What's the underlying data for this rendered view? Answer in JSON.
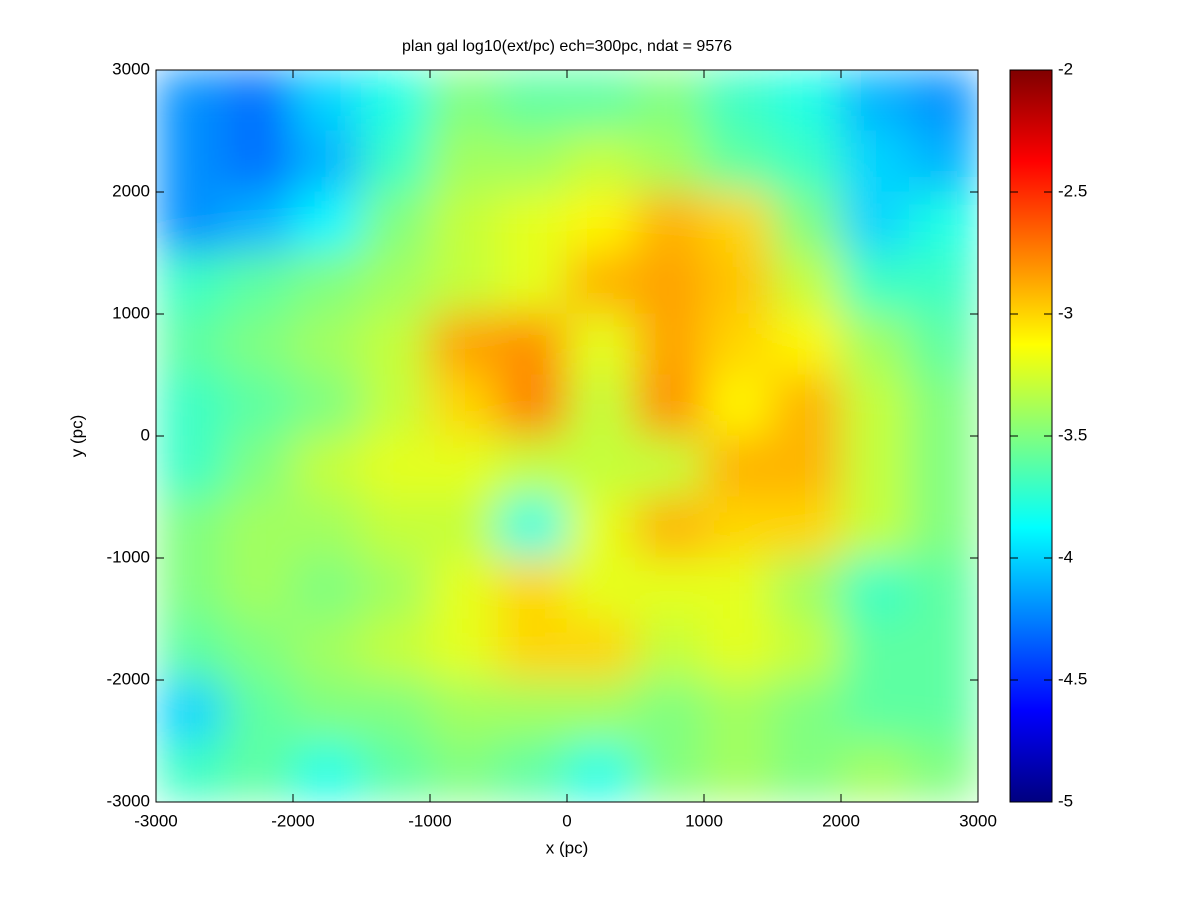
{
  "chart_data": {
    "type": "heatmap",
    "title": "plan gal log10(ext/pc) ech=300pc, ndat = 9576",
    "xlabel": "x (pc)",
    "ylabel": "y (pc)",
    "x": [
      -2750,
      -2250,
      -1750,
      -1250,
      -750,
      -250,
      250,
      750,
      1250,
      1750,
      2250,
      2750
    ],
    "y": [
      2750,
      2250,
      1750,
      1250,
      750,
      250,
      -250,
      -750,
      -1250,
      -1750,
      -2250,
      -2750
    ],
    "z": [
      [
        -4.2,
        -4.3,
        -4.0,
        -3.8,
        -3.5,
        -3.6,
        -3.6,
        -3.5,
        -3.7,
        -3.8,
        -4.1,
        -4.2
      ],
      [
        -4.2,
        -4.3,
        -4.1,
        -3.7,
        -3.4,
        -3.4,
        -3.3,
        -3.4,
        -3.6,
        -3.7,
        -4.0,
        -4.1
      ],
      [
        -4.2,
        -4.1,
        -3.9,
        -3.5,
        -3.3,
        -3.2,
        -3.1,
        -2.9,
        -3.0,
        -3.5,
        -4.0,
        -3.8
      ],
      [
        -3.7,
        -3.6,
        -3.5,
        -3.4,
        -3.3,
        -3.2,
        -2.9,
        -2.85,
        -2.95,
        -3.3,
        -3.7,
        -3.7
      ],
      [
        -3.6,
        -3.5,
        -3.4,
        -3.3,
        -2.85,
        -2.8,
        -3.2,
        -2.85,
        -3.0,
        -3.1,
        -3.4,
        -3.6
      ],
      [
        -3.7,
        -3.6,
        -3.5,
        -3.3,
        -3.0,
        -2.75,
        -3.3,
        -2.8,
        -3.1,
        -2.9,
        -3.3,
        -3.5
      ],
      [
        -3.7,
        -3.5,
        -3.3,
        -3.2,
        -3.2,
        -3.3,
        -3.3,
        -3.3,
        -2.9,
        -2.9,
        -3.3,
        -3.5
      ],
      [
        -3.5,
        -3.4,
        -3.4,
        -3.3,
        -3.3,
        -3.8,
        -3.2,
        -2.9,
        -3.0,
        -3.0,
        -3.3,
        -3.5
      ],
      [
        -3.5,
        -3.4,
        -3.5,
        -3.4,
        -3.2,
        -3.0,
        -3.2,
        -3.2,
        -3.2,
        -3.4,
        -3.7,
        -3.6
      ],
      [
        -3.6,
        -3.5,
        -3.4,
        -3.3,
        -3.2,
        -3.0,
        -3.0,
        -3.3,
        -3.2,
        -3.3,
        -3.6,
        -3.6
      ],
      [
        -4.0,
        -3.6,
        -3.5,
        -3.5,
        -3.4,
        -3.4,
        -3.4,
        -3.5,
        -3.4,
        -3.5,
        -3.6,
        -3.6
      ],
      [
        -3.7,
        -3.6,
        -3.8,
        -3.6,
        -3.5,
        -3.6,
        -3.8,
        -3.5,
        -3.4,
        -3.5,
        -3.4,
        -3.5
      ]
    ],
    "colormap": "jet",
    "clim": [
      -5,
      -2
    ],
    "cticks": [
      -5,
      -4.5,
      -4,
      -3.5,
      -3,
      -2.5,
      -2
    ],
    "xlim": [
      -3000,
      3000
    ],
    "xticks": [
      -3000,
      -2000,
      -1000,
      0,
      1000,
      2000,
      3000
    ],
    "ylim": [
      -3000,
      3000
    ],
    "yticks": [
      -3000,
      -2000,
      -1000,
      0,
      1000,
      2000,
      3000
    ]
  }
}
